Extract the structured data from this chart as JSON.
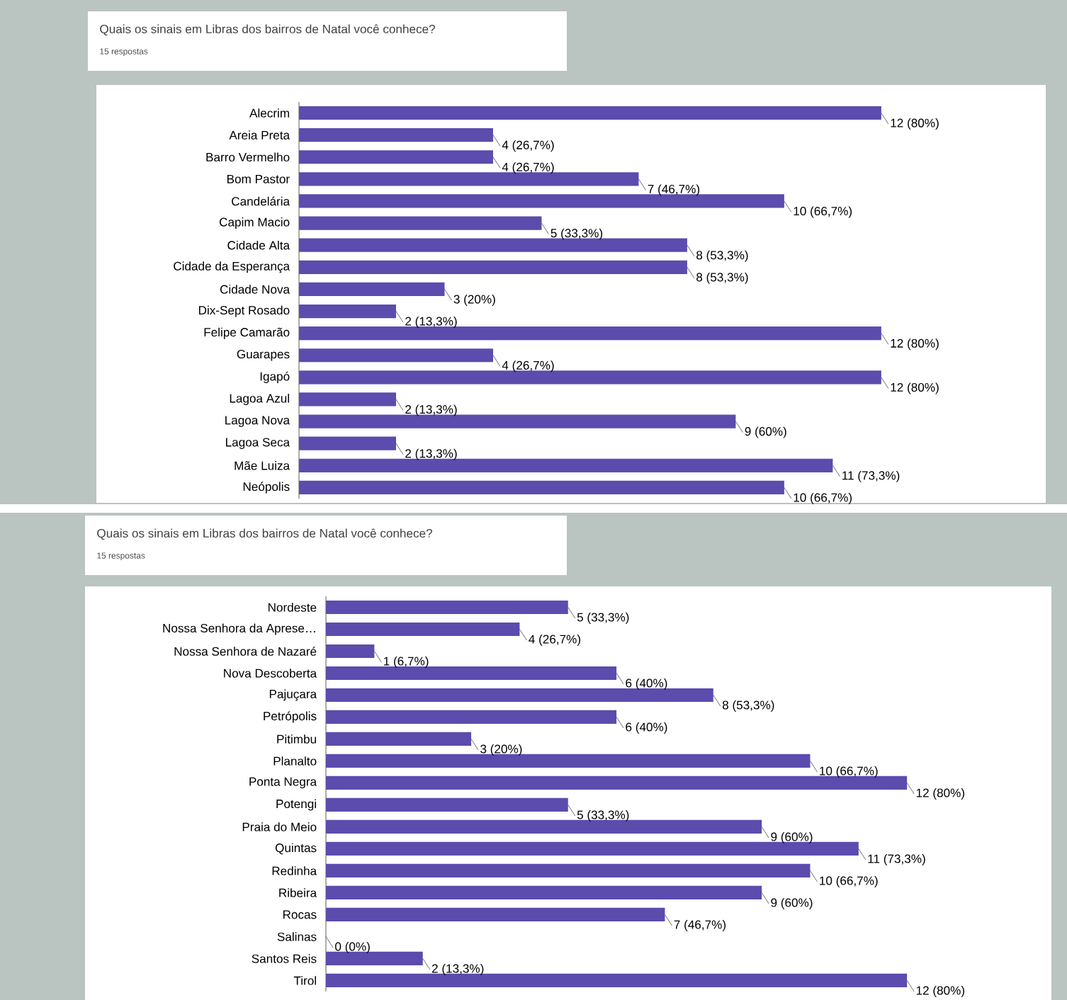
{
  "chart_data": [
    {
      "type": "bar",
      "orientation": "horizontal",
      "title": "Quais os sinais em Libras dos bairros de Natal você conhece?",
      "subtitle": "15 respostas",
      "color": "#5b4cad",
      "categories": [
        "Alecrim",
        "Areia Preta",
        "Barro Vermelho",
        "Bom Pastor",
        "Candelária",
        "Capim Macio",
        "Cidade Alta",
        "Cidade da Esperança",
        "Cidade Nova",
        "Dix-Sept Rosado",
        "Felipe Camarão",
        "Guarapes",
        "Igapó",
        "Lagoa Azul",
        "Lagoa Nova",
        "Lagoa Seca",
        "Mãe Luiza",
        "Neópolis"
      ],
      "values": [
        12,
        4,
        4,
        7,
        10,
        5,
        8,
        8,
        3,
        2,
        12,
        4,
        12,
        2,
        9,
        2,
        11,
        10
      ],
      "value_labels": [
        "12 (80%)",
        "4 (26,7%)",
        "4 (26,7%)",
        "7 (46,7%)",
        "10 (66,7%)",
        "5 (33,3%)",
        "8 (53,3%)",
        "8 (53,3%)",
        "3 (20%)",
        "2 (13,3%)",
        "12 (80%)",
        "4 (26,7%)",
        "12 (80%)",
        "2 (13,3%)",
        "9 (60%)",
        "2 (13,3%)",
        "11 (73,3%)",
        "10 (66,7%)"
      ]
    },
    {
      "type": "bar",
      "orientation": "horizontal",
      "title": "Quais os sinais em Libras dos bairros de Natal você conhece?",
      "subtitle": "15 respostas",
      "color": "#5b4cad",
      "categories": [
        "Nordeste",
        "Nossa Senhora da Aprese…",
        "Nossa Senhora de Nazaré",
        "Nova Descoberta",
        "Pajuçara",
        "Petrópolis",
        "Pitimbu",
        "Planalto",
        "Ponta Negra",
        "Potengi",
        "Praia do Meio",
        "Quintas",
        "Redinha",
        "Ribeira",
        "Rocas",
        "Salinas",
        "Santos Reis",
        "Tirol"
      ],
      "values": [
        5,
        4,
        1,
        6,
        8,
        6,
        3,
        10,
        12,
        5,
        9,
        11,
        10,
        9,
        7,
        0,
        2,
        12
      ],
      "value_labels": [
        "5 (33,3%)",
        "4 (26,7%)",
        "1 (6,7%)",
        "6 (40%)",
        "8 (53,3%)",
        "6 (40%)",
        "3 (20%)",
        "10 (66,7%)",
        "12 (80%)",
        "5 (33,3%)",
        "9 (60%)",
        "11 (73,3%)",
        "10 (66,7%)",
        "9 (60%)",
        "7 (46,7%)",
        "0 (0%)",
        "2 (13,3%)",
        "12 (80%)"
      ]
    }
  ]
}
